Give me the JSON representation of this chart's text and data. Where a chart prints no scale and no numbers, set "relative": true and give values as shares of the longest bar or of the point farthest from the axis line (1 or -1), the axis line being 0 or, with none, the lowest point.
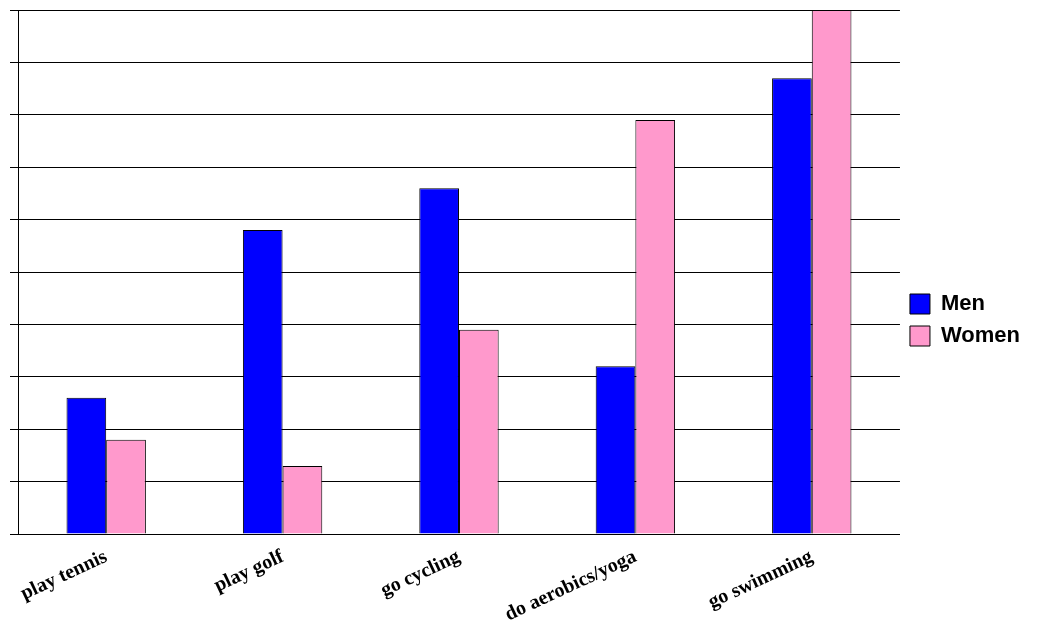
{
  "chart_data": {
    "type": "bar",
    "relative": true,
    "categories": [
      "play tennis",
      "play golf",
      "go cycling",
      "do aerobics/yoga",
      "go swimming"
    ],
    "series": [
      {
        "name": "Men",
        "color": "#0000ff",
        "values": [
          0.26,
          0.58,
          0.66,
          0.32,
          0.87
        ]
      },
      {
        "name": "Women",
        "color": "#ff99cc",
        "values": [
          0.18,
          0.13,
          0.39,
          0.79,
          1
        ]
      }
    ],
    "grid": "y",
    "legend": "right"
  }
}
